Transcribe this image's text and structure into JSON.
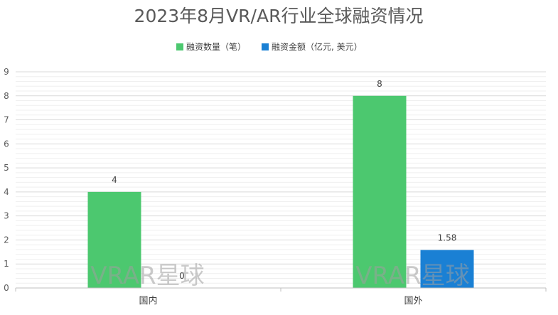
{
  "chart_data": {
    "type": "bar",
    "title": "2023年8月VR/AR行业全球融资情况",
    "categories": [
      "国内",
      "国外"
    ],
    "series": [
      {
        "name": "融资数量（笔）",
        "values": [
          4,
          8
        ],
        "data_labels": [
          "4",
          "8"
        ],
        "color": "#4cc86f"
      },
      {
        "name": "融资金额（亿元, 美元）",
        "values": [
          0,
          1.58
        ],
        "data_labels": [
          "0",
          "1.58"
        ],
        "color": "#1a80d4"
      }
    ],
    "ylim": [
      0,
      9
    ],
    "yticks": [
      "0",
      "1",
      "2",
      "3",
      "4",
      "5",
      "6",
      "7",
      "8",
      "9"
    ],
    "grid": true,
    "legend_position": "top",
    "xlabel": "",
    "ylabel": ""
  },
  "watermark": "VRAR星球"
}
